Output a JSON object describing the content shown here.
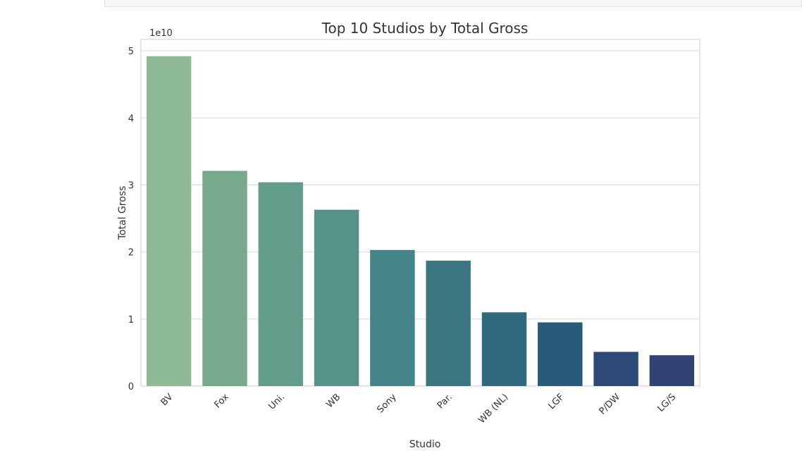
{
  "chart_data": {
    "type": "bar",
    "title": "Top 10 Studios by Total Gross",
    "xlabel": "Studio",
    "ylabel": "Total Gross",
    "offset_text": "1e10",
    "categories": [
      "BV",
      "Fox",
      "Uni.",
      "WB",
      "Sony",
      "Par.",
      "WB (NL)",
      "LGF",
      "P/DW",
      "LG/S"
    ],
    "values": [
      49200000000.0,
      32100000000.0,
      30400000000.0,
      26300000000.0,
      20300000000.0,
      18700000000.0,
      11000000000.0,
      9500000000.0,
      5100000000.0,
      4600000000.0
    ],
    "yticks": [
      0,
      1,
      2,
      3,
      4,
      5
    ],
    "ylim": [
      0,
      51700000000.0
    ],
    "colors": [
      "#8db995",
      "#77aa8d",
      "#639e8c",
      "#54928a",
      "#448588",
      "#3b7680",
      "#2f6a7e",
      "#285a7a",
      "#2d4a77",
      "#324273"
    ],
    "grid": true
  }
}
